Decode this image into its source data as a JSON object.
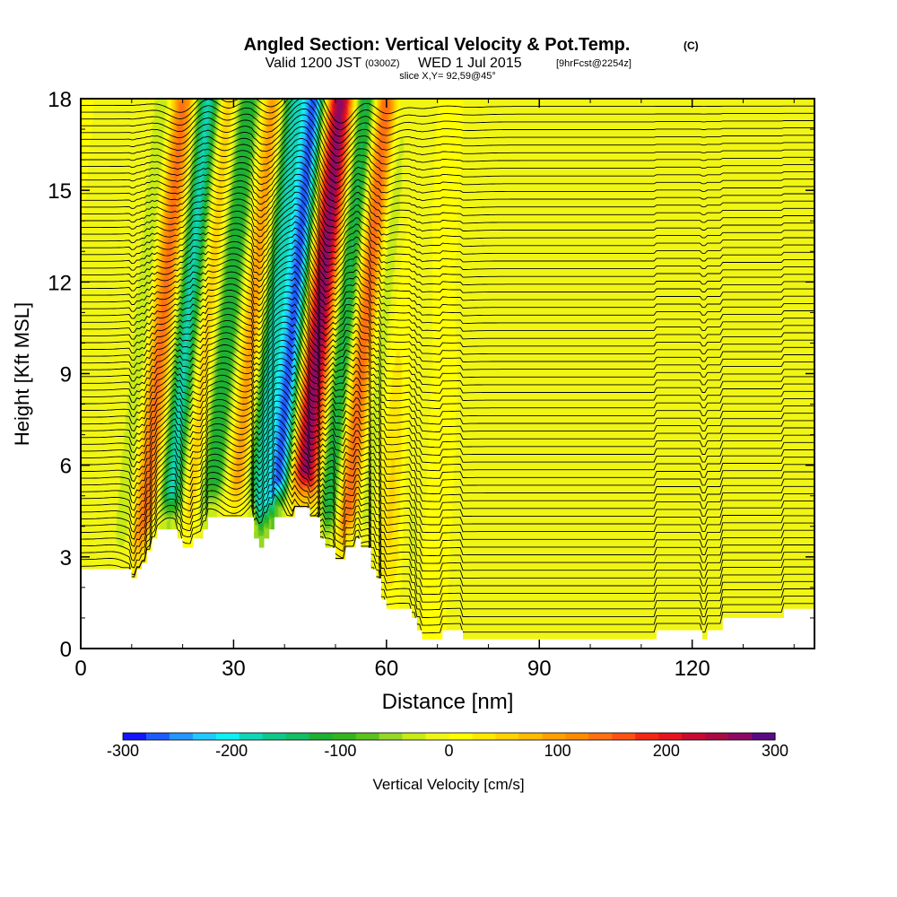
{
  "chart_data": {
    "type": "heatmap",
    "title": "Angled Section: Vertical Velocity & Pot.Temp.",
    "title_unit": "(C)",
    "subtitle_main": "Valid 1200 JST",
    "subtitle_zulu": "(0300Z)",
    "subtitle_date": "WED 1 Jul 2015",
    "subtitle_fcst": "[9hrFcst@2254z]",
    "slice_label": "slice X,Y= 92,59@45°",
    "xlabel": "Distance [nm]",
    "ylabel": "Height [Kft MSL]",
    "xlim": [
      0,
      144
    ],
    "ylim": [
      0,
      18
    ],
    "x_ticks": [
      "0",
      "30",
      "60",
      "90",
      "120"
    ],
    "x_tick_values": [
      0,
      30,
      60,
      90,
      120
    ],
    "y_ticks": [
      "0",
      "3",
      "6",
      "9",
      "12",
      "15",
      "18"
    ],
    "y_tick_values": [
      0,
      3,
      6,
      9,
      12,
      15,
      18
    ],
    "colorbar": {
      "label": "Vertical Velocity [cm/s]",
      "range": [
        -300,
        300
      ],
      "tick_labels": [
        "-300",
        "-200",
        "-100",
        "0",
        "100",
        "200",
        "300"
      ],
      "colors": [
        "#1414ff",
        "#1e5aff",
        "#2396ff",
        "#22c8ff",
        "#10f0f0",
        "#10d6b8",
        "#10c88a",
        "#14be64",
        "#1eb032",
        "#34b41e",
        "#5ac31e",
        "#96d728",
        "#c8eb14",
        "#f0f514",
        "#ffff00",
        "#ffe800",
        "#ffd200",
        "#ffbb00",
        "#ffa000",
        "#ff8c00",
        "#ff7014",
        "#ff5014",
        "#f02814",
        "#e6141e",
        "#c80a32",
        "#aa0a46",
        "#8c0a64",
        "#5a0a82"
      ]
    },
    "terrain_kft": [
      [
        0,
        2.6
      ],
      [
        10,
        2.6
      ],
      [
        10,
        2.3
      ],
      [
        11,
        2.3
      ],
      [
        11,
        2.6
      ],
      [
        12,
        2.6
      ],
      [
        12,
        2.8
      ],
      [
        13,
        2.8
      ],
      [
        13,
        3.2
      ],
      [
        14,
        3.2
      ],
      [
        14,
        3.6
      ],
      [
        15,
        3.6
      ],
      [
        15,
        3.9
      ],
      [
        19,
        3.9
      ],
      [
        19,
        3.6
      ],
      [
        20,
        3.6
      ],
      [
        20,
        3.3
      ],
      [
        22,
        3.3
      ],
      [
        22,
        3.6
      ],
      [
        24,
        3.6
      ],
      [
        24,
        3.9
      ],
      [
        25,
        3.9
      ],
      [
        25,
        4.3
      ],
      [
        34,
        4.3
      ],
      [
        34,
        3.6
      ],
      [
        35,
        3.6
      ],
      [
        35,
        3.3
      ],
      [
        36,
        3.3
      ],
      [
        36,
        3.6
      ],
      [
        37,
        3.6
      ],
      [
        37,
        3.9
      ],
      [
        38,
        3.9
      ],
      [
        38,
        4.3
      ],
      [
        42,
        4.3
      ],
      [
        42,
        4.6
      ],
      [
        45,
        4.6
      ],
      [
        45,
        4.3
      ],
      [
        47,
        4.3
      ],
      [
        47,
        3.6
      ],
      [
        48,
        3.6
      ],
      [
        48,
        3.3
      ],
      [
        50,
        3.3
      ],
      [
        50,
        2.9
      ],
      [
        52,
        2.9
      ],
      [
        52,
        3.3
      ],
      [
        54,
        3.3
      ],
      [
        54,
        3.6
      ],
      [
        55,
        3.6
      ],
      [
        55,
        3.3
      ],
      [
        57,
        3.3
      ],
      [
        57,
        2.6
      ],
      [
        58,
        2.6
      ],
      [
        58,
        2.3
      ],
      [
        59,
        2.3
      ],
      [
        59,
        1.6
      ],
      [
        60,
        1.6
      ],
      [
        60,
        1.3
      ],
      [
        65,
        1.3
      ],
      [
        65,
        1.0
      ],
      [
        66,
        1.0
      ],
      [
        66,
        0.6
      ],
      [
        67,
        0.6
      ],
      [
        67,
        0.3
      ],
      [
        71,
        0.3
      ],
      [
        71,
        0.6
      ],
      [
        75,
        0.6
      ],
      [
        75,
        0.3
      ],
      [
        113,
        0.3
      ],
      [
        113,
        0.6
      ],
      [
        122,
        0.6
      ],
      [
        122,
        0.3
      ],
      [
        123,
        0.3
      ],
      [
        123,
        0.6
      ],
      [
        126,
        0.6
      ],
      [
        126,
        1.0
      ],
      [
        138,
        1.0
      ],
      [
        138,
        1.3
      ],
      [
        144,
        1.3
      ]
    ],
    "contour_levels_c": [
      20,
      22,
      24,
      26,
      28,
      30,
      32,
      34,
      36,
      38,
      40,
      42,
      44,
      46,
      48,
      50,
      52,
      54,
      56,
      58,
      60,
      62,
      64,
      66,
      68,
      70,
      72,
      74,
      76,
      78,
      80,
      82,
      84,
      86,
      88,
      90,
      92,
      94,
      96,
      98,
      100,
      102,
      104,
      106,
      108,
      110,
      112,
      114,
      116,
      118,
      120,
      122,
      124,
      126,
      128,
      130,
      132,
      134,
      136,
      138,
      140,
      142,
      144,
      146,
      148,
      150,
      152,
      154,
      156,
      158,
      160
    ],
    "waves": [
      {
        "x_nm": 12,
        "sign": -1,
        "amp": 60,
        "width_nm": 2.4
      },
      {
        "x_nm": 15,
        "sign": 1,
        "amp": 150,
        "width_nm": 2.6
      },
      {
        "x_nm": 20,
        "sign": -1,
        "amp": 180,
        "width_nm": 2.4
      },
      {
        "x_nm": 24,
        "sign": 1,
        "amp": 70,
        "width_nm": 2.0
      },
      {
        "x_nm": 28,
        "sign": -1,
        "amp": 130,
        "width_nm": 2.4
      },
      {
        "x_nm": 33,
        "sign": 1,
        "amp": 110,
        "width_nm": 2.2
      },
      {
        "x_nm": 37,
        "sign": -1,
        "amp": 170,
        "width_nm": 2.6
      },
      {
        "x_nm": 41,
        "sign": -1,
        "amp": 260,
        "width_nm": 2.2
      },
      {
        "x_nm": 46,
        "sign": 1,
        "amp": 270,
        "width_nm": 2.8
      },
      {
        "x_nm": 51,
        "sign": -1,
        "amp": 150,
        "width_nm": 2.4
      },
      {
        "x_nm": 55,
        "sign": 1,
        "amp": 160,
        "width_nm": 2.4
      },
      {
        "x_nm": 58,
        "sign": -1,
        "amp": 60,
        "width_nm": 2.2
      },
      {
        "x_nm": 62,
        "sign": 1,
        "amp": 50,
        "width_nm": 2.6
      },
      {
        "x_nm": 66,
        "sign": -1,
        "amp": 30,
        "width_nm": 3.0
      },
      {
        "x_nm": 70,
        "sign": 1,
        "amp": 20,
        "width_nm": 3.0
      },
      {
        "x_nm": 78,
        "sign": -1,
        "amp": 18,
        "width_nm": 4.0
      },
      {
        "x_nm": 105,
        "sign": -1,
        "amp": 18,
        "width_nm": 3.0
      },
      {
        "x_nm": 112,
        "sign": -1,
        "amp": 18,
        "width_nm": 3.0
      },
      {
        "x_nm": 124,
        "sign": -1,
        "amp": 18,
        "width_nm": 2.5
      },
      {
        "x_nm": 140,
        "sign": -1,
        "amp": 16,
        "width_nm": 3.0
      }
    ]
  }
}
